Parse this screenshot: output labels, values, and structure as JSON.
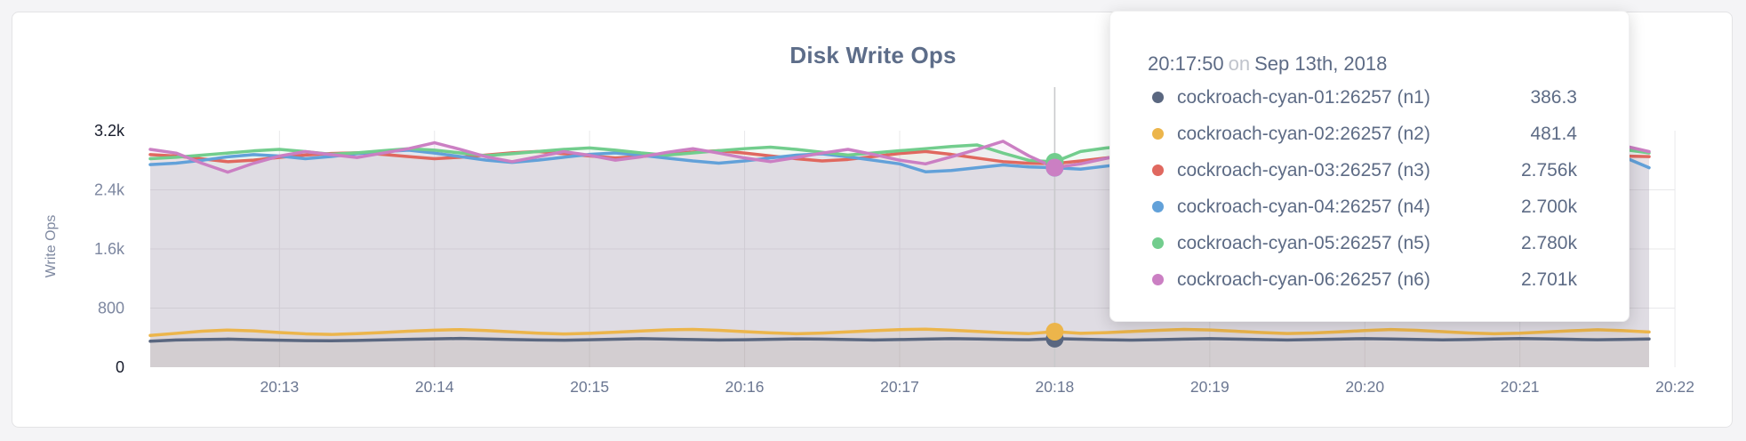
{
  "card": {
    "title": "Disk Write Ops"
  },
  "chart_data": {
    "type": "line",
    "title": "Disk Write Ops",
    "xlabel": "",
    "ylabel": "Write Ops",
    "ylim": [
      0,
      3200
    ],
    "grid": true,
    "legend_position": "none",
    "y_ticks": [
      {
        "label": "0",
        "value": 0,
        "dark": true,
        "grid": false
      },
      {
        "label": "800",
        "value": 800,
        "dark": false,
        "grid": true
      },
      {
        "label": "1.6k",
        "value": 1600,
        "dark": false,
        "grid": true
      },
      {
        "label": "2.4k",
        "value": 2400,
        "dark": false,
        "grid": true
      },
      {
        "label": "3.2k",
        "value": 3200,
        "dark": true,
        "grid": false
      }
    ],
    "x_ticks": [
      {
        "label": "20:13",
        "offset_s": 50
      },
      {
        "label": "20:14",
        "offset_s": 110
      },
      {
        "label": "20:15",
        "offset_s": 170
      },
      {
        "label": "20:16",
        "offset_s": 230
      },
      {
        "label": "20:17",
        "offset_s": 290
      },
      {
        "label": "20:18",
        "offset_s": 350
      },
      {
        "label": "20:19",
        "offset_s": 410
      },
      {
        "label": "20:20",
        "offset_s": 470
      },
      {
        "label": "20:21",
        "offset_s": 530
      },
      {
        "label": "20:22",
        "offset_s": 590
      }
    ],
    "point_interval_s": 10,
    "hover_index": 35,
    "hover_time": "20:17:50",
    "series": [
      {
        "name": "cockroach-cyan-01:26257 (n1)",
        "color": "#5a6780",
        "values": [
          352,
          368,
          375,
          380,
          372,
          365,
          360,
          358,
          363,
          370,
          378,
          384,
          389,
          382,
          375,
          369,
          365,
          371,
          379,
          386,
          381,
          374,
          368,
          372,
          378,
          384,
          380,
          374,
          369,
          374,
          380,
          386,
          382,
          376,
          371,
          386.3,
          379,
          372,
          367,
          373,
          380,
          386,
          381,
          375,
          369,
          374,
          381,
          387,
          382,
          376,
          370,
          375,
          382,
          388,
          383,
          377,
          371,
          376,
          382
        ]
      },
      {
        "name": "cockroach-cyan-02:26257 (n2)",
        "color": "#ecb54b",
        "values": [
          430,
          458,
          488,
          503,
          492,
          470,
          452,
          443,
          455,
          470,
          487,
          501,
          509,
          496,
          478,
          461,
          450,
          459,
          474,
          491,
          506,
          512,
          499,
          482,
          465,
          453,
          462,
          478,
          495,
          509,
          514,
          501,
          484,
          467,
          455,
          481.4,
          459,
          468,
          484,
          500,
          512,
          504,
          487,
          469,
          456,
          463,
          479,
          496,
          510,
          499,
          481,
          464,
          453,
          461,
          477,
          493,
          507,
          495,
          477
        ]
      },
      {
        "name": "cockroach-cyan-03:26257 (n3)",
        "color": "#e0685f",
        "values": [
          2878,
          2858,
          2820,
          2782,
          2802,
          2840,
          2872,
          2892,
          2902,
          2880,
          2850,
          2822,
          2842,
          2872,
          2902,
          2920,
          2890,
          2860,
          2832,
          2852,
          2882,
          2912,
          2930,
          2898,
          2860,
          2822,
          2792,
          2812,
          2852,
          2892,
          2920,
          2880,
          2830,
          2782,
          2760,
          2756,
          2792,
          2832,
          2872,
          2902,
          2920,
          2888,
          2850,
          2812,
          2782,
          2802,
          2842,
          2882,
          2912,
          2928,
          2898,
          2860,
          2822,
          2792,
          2812,
          2852,
          2890,
          2858,
          2850
        ]
      },
      {
        "name": "cockroach-cyan-04:26257 (n4)",
        "color": "#62a1d9",
        "values": [
          2742,
          2762,
          2800,
          2848,
          2878,
          2858,
          2822,
          2852,
          2890,
          2918,
          2938,
          2898,
          2850,
          2802,
          2772,
          2802,
          2842,
          2880,
          2900,
          2868,
          2830,
          2792,
          2762,
          2792,
          2832,
          2870,
          2888,
          2848,
          2800,
          2752,
          2645,
          2662,
          2700,
          2738,
          2710,
          2700,
          2680,
          2722,
          2762,
          2800,
          2840,
          2878,
          2848,
          2800,
          2762,
          2790,
          2830,
          2868,
          2898,
          2866,
          2828,
          2790,
          2752,
          2780,
          2820,
          2858,
          2888,
          2848,
          2700
        ]
      },
      {
        "name": "cockroach-cyan-05:26257 (n5)",
        "color": "#72cd8d",
        "values": [
          2822,
          2842,
          2870,
          2898,
          2928,
          2948,
          2918,
          2882,
          2902,
          2930,
          2958,
          2938,
          2900,
          2862,
          2890,
          2920,
          2948,
          2968,
          2938,
          2900,
          2870,
          2900,
          2930,
          2958,
          2978,
          2948,
          2910,
          2872,
          2900,
          2930,
          2958,
          2988,
          3008,
          2898,
          2800,
          2780,
          2920,
          2968,
          2998,
          2958,
          2910,
          2872,
          2900,
          2930,
          2958,
          2928,
          2890,
          2860,
          2890,
          2920,
          2948,
          2968,
          2930,
          2890,
          2860,
          2890,
          2920,
          2948,
          2900
        ]
      },
      {
        "name": "cockroach-cyan-06:26257 (n6)",
        "color": "#cb7fc3",
        "values": [
          2948,
          2898,
          2760,
          2640,
          2760,
          2858,
          2918,
          2878,
          2838,
          2898,
          2958,
          3038,
          2948,
          2848,
          2782,
          2848,
          2918,
          2868,
          2802,
          2848,
          2908,
          2958,
          2898,
          2832,
          2782,
          2838,
          2898,
          2948,
          2878,
          2802,
          2752,
          2848,
          2948,
          3058,
          2860,
          2701,
          2752,
          2828,
          2898,
          2858,
          2798,
          2758,
          2818,
          2878,
          2928,
          2878,
          2818,
          2768,
          2828,
          2888,
          2938,
          2888,
          2828,
          2778,
          2838,
          2898,
          2948,
          2998,
          2918
        ]
      }
    ]
  },
  "tooltip": {
    "time": "20:17:50",
    "conjunction": "on",
    "date": "Sep 13th, 2018",
    "rows": [
      {
        "name": "cockroach-cyan-01:26257 (n1)",
        "value": "386.3",
        "color": "#5a6780"
      },
      {
        "name": "cockroach-cyan-02:26257 (n2)",
        "value": "481.4",
        "color": "#ecb54b"
      },
      {
        "name": "cockroach-cyan-03:26257 (n3)",
        "value": "2.756k",
        "color": "#e0685f"
      },
      {
        "name": "cockroach-cyan-04:26257 (n4)",
        "value": "2.700k",
        "color": "#62a1d9"
      },
      {
        "name": "cockroach-cyan-05:26257 (n5)",
        "value": "2.780k",
        "color": "#72cd8d"
      },
      {
        "name": "cockroach-cyan-06:26257 (n6)",
        "value": "2.701k",
        "color": "#cb7fc3"
      }
    ]
  },
  "colors": {
    "page_bg": "#f4f4f6",
    "card_bg": "#ffffff",
    "card_border": "#e3e3e5",
    "gridline": "#e8e8ea",
    "hover_line": "#c9cacc",
    "title_text": "#5d6d89",
    "tick_text": "#7d87a0",
    "tick_text_dark": "#171c2c",
    "x_tick_text": "#6b7792",
    "tooltip_text": "#5d6b85"
  }
}
